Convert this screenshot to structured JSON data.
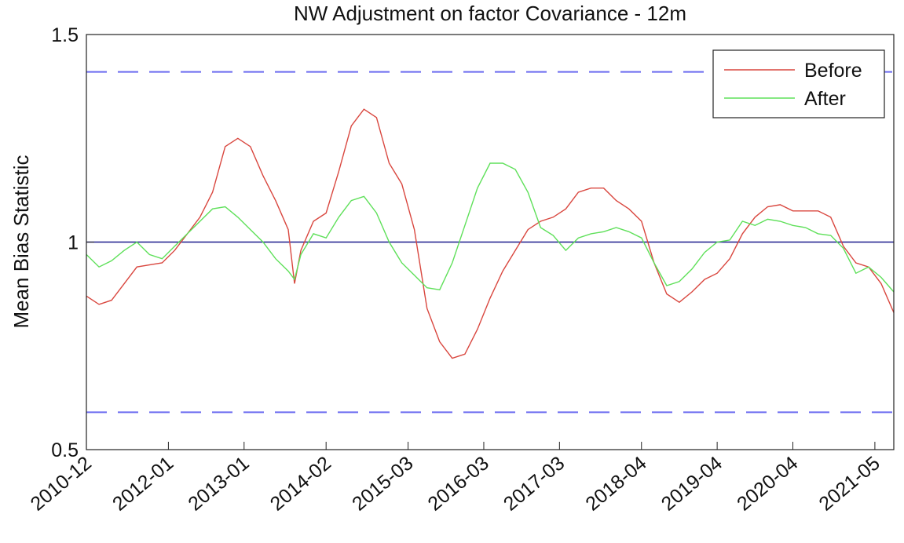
{
  "chart_data": {
    "type": "line",
    "title": "NW Adjustment on factor Covariance - 12m",
    "ylabel": "Mean Bias Statistic",
    "x": [
      "2010-12",
      "2011-02",
      "2011-04",
      "2011-06",
      "2011-08",
      "2011-10",
      "2011-12",
      "2012-02",
      "2012-04",
      "2012-06",
      "2012-08",
      "2012-10",
      "2012-12",
      "2013-02",
      "2013-04",
      "2013-06",
      "2013-08",
      "2013-09",
      "2013-10",
      "2013-12",
      "2014-02",
      "2014-04",
      "2014-06",
      "2014-08",
      "2014-10",
      "2014-12",
      "2015-02",
      "2015-04",
      "2015-06",
      "2015-08",
      "2015-10",
      "2015-12",
      "2016-02",
      "2016-04",
      "2016-06",
      "2016-08",
      "2016-10",
      "2016-12",
      "2017-02",
      "2017-04",
      "2017-06",
      "2017-08",
      "2017-10",
      "2017-12",
      "2018-02",
      "2018-04",
      "2018-06",
      "2018-08",
      "2018-10",
      "2018-12",
      "2019-02",
      "2019-04",
      "2019-06",
      "2019-08",
      "2019-10",
      "2019-12",
      "2020-02",
      "2020-04",
      "2020-06",
      "2020-08",
      "2020-10",
      "2020-12",
      "2021-02",
      "2021-04",
      "2021-06",
      "2021-08"
    ],
    "series": [
      {
        "name": "Before",
        "color": "#d9473f",
        "values": [
          0.87,
          0.85,
          0.86,
          0.9,
          0.94,
          0.945,
          0.95,
          0.98,
          1.02,
          1.06,
          1.12,
          1.23,
          1.25,
          1.23,
          1.16,
          1.1,
          1.03,
          0.9,
          0.98,
          1.05,
          1.07,
          1.17,
          1.28,
          1.32,
          1.3,
          1.19,
          1.14,
          1.03,
          0.84,
          0.76,
          0.72,
          0.73,
          0.79,
          0.865,
          0.93,
          0.98,
          1.03,
          1.05,
          1.06,
          1.08,
          1.12,
          1.13,
          1.13,
          1.1,
          1.08,
          1.05,
          0.95,
          0.875,
          0.855,
          0.88,
          0.91,
          0.925,
          0.96,
          1.02,
          1.06,
          1.085,
          1.09,
          1.075,
          1.075,
          1.075,
          1.06,
          0.99,
          0.95,
          0.94,
          0.9,
          0.83
        ]
      },
      {
        "name": "After",
        "color": "#5fe05a",
        "values": [
          0.97,
          0.94,
          0.955,
          0.98,
          1.0,
          0.97,
          0.96,
          0.99,
          1.02,
          1.05,
          1.08,
          1.085,
          1.06,
          1.03,
          1.0,
          0.96,
          0.93,
          0.91,
          0.97,
          1.02,
          1.01,
          1.06,
          1.1,
          1.11,
          1.07,
          1.0,
          0.95,
          0.92,
          0.89,
          0.885,
          0.95,
          1.04,
          1.13,
          1.19,
          1.19,
          1.175,
          1.12,
          1.035,
          1.016,
          0.98,
          1.01,
          1.02,
          1.025,
          1.035,
          1.025,
          1.01,
          0.95,
          0.895,
          0.905,
          0.935,
          0.975,
          1.0,
          1.005,
          1.05,
          1.04,
          1.055,
          1.05,
          1.04,
          1.035,
          1.02,
          1.016,
          0.985,
          0.925,
          0.94,
          0.915,
          0.88
        ]
      }
    ],
    "hlines": [
      {
        "value": 1.41,
        "color": "#6b6bf0",
        "style": "dashed"
      },
      {
        "value": 1,
        "color": "#1c1c8c",
        "style": "solid"
      },
      {
        "value": 0.59,
        "color": "#6b6bf0",
        "style": "dashed"
      }
    ],
    "xlim": [
      "2010-12",
      "2021-08"
    ],
    "xticks": [
      "2010-12",
      "2012-01",
      "2013-01",
      "2014-02",
      "2015-03",
      "2016-03",
      "2017-03",
      "2018-04",
      "2019-04",
      "2020-04",
      "2021-05"
    ],
    "ylim": [
      0.5,
      1.5
    ],
    "yticks": [
      0.5,
      1,
      1.5
    ],
    "legend": "upper right"
  }
}
